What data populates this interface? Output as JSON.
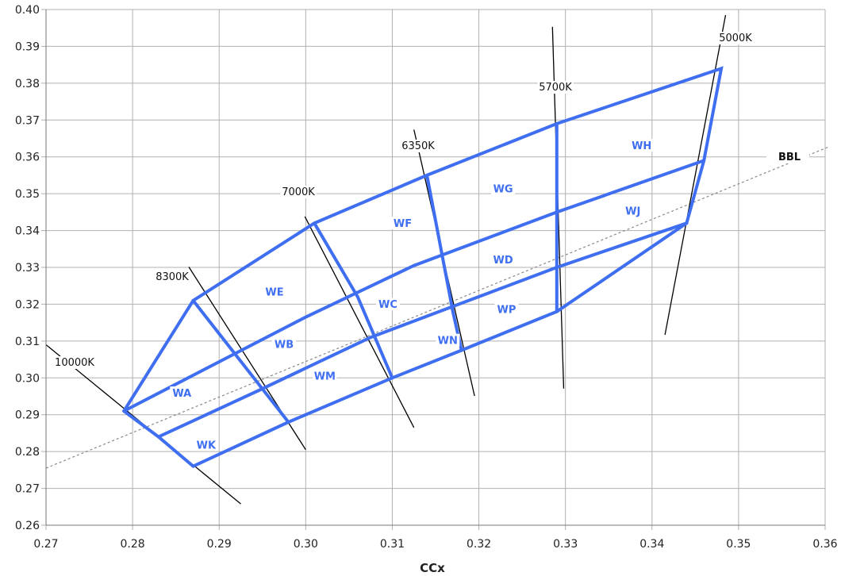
{
  "chart_data": {
    "type": "scatter",
    "xlabel": "CCx",
    "ylabel": "",
    "xlim": [
      0.27,
      0.36
    ],
    "ylim": [
      0.26,
      0.4
    ],
    "x_ticks": [
      "0.27",
      "0.28",
      "0.29",
      "0.30",
      "0.31",
      "0.32",
      "0.33",
      "0.34",
      "0.35",
      "0.36"
    ],
    "y_ticks": [
      "0.26",
      "0.27",
      "0.28",
      "0.29",
      "0.30",
      "0.31",
      "0.32",
      "0.33",
      "0.34",
      "0.35",
      "0.36",
      "0.37",
      "0.38",
      "0.39",
      "0.40"
    ],
    "grid": true,
    "colors": {
      "bins": "#3f6ff0",
      "cct_lines": "#000000",
      "bbl": "#888888",
      "grid": "#b0b0b0"
    },
    "bbl": {
      "label": "BBL",
      "points": [
        [
          0.27,
          0.2755
        ],
        [
          0.3605,
          0.3628
        ]
      ]
    },
    "cct_lines": [
      {
        "label": "10000K",
        "points": [
          [
            0.27,
            0.309
          ],
          [
            0.2925,
            0.2658
          ]
        ]
      },
      {
        "label": "8300K",
        "points": [
          [
            0.2865,
            0.3301
          ],
          [
            0.3,
            0.2805
          ]
        ]
      },
      {
        "label": "7000K",
        "points": [
          [
            0.2999,
            0.3438
          ],
          [
            0.3125,
            0.2865
          ]
        ]
      },
      {
        "label": "6350K",
        "points": [
          [
            0.3125,
            0.3674
          ],
          [
            0.3195,
            0.2951
          ]
        ]
      },
      {
        "label": "5700K",
        "points": [
          [
            0.3285,
            0.3953
          ],
          [
            0.3298,
            0.2971
          ]
        ]
      },
      {
        "label": "5000K",
        "points": [
          [
            0.3485,
            0.3985
          ],
          [
            0.3415,
            0.3117
          ]
        ]
      }
    ],
    "bin_outlines": [
      {
        "points": [
          [
            0.279,
            0.291
          ],
          [
            0.287,
            0.321
          ],
          [
            0.301,
            0.342
          ],
          [
            0.314,
            0.355
          ],
          [
            0.329,
            0.369
          ],
          [
            0.348,
            0.384
          ],
          [
            0.346,
            0.359
          ],
          [
            0.344,
            0.342
          ],
          [
            0.329,
            0.318
          ],
          [
            0.318,
            0.3075
          ],
          [
            0.31,
            0.3
          ],
          [
            0.298,
            0.288
          ],
          [
            0.287,
            0.276
          ],
          [
            0.283,
            0.284
          ],
          [
            0.279,
            0.291
          ]
        ]
      },
      {
        "points": [
          [
            0.279,
            0.291
          ],
          [
            0.3,
            0.3165
          ],
          [
            0.3125,
            0.3305
          ],
          [
            0.329,
            0.345
          ],
          [
            0.346,
            0.359
          ]
        ]
      },
      {
        "points": [
          [
            0.283,
            0.284
          ],
          [
            0.2945,
            0.2965
          ],
          [
            0.3075,
            0.311
          ],
          [
            0.329,
            0.33
          ],
          [
            0.344,
            0.342
          ]
        ]
      },
      {
        "points": [
          [
            0.287,
            0.321
          ],
          [
            0.298,
            0.288
          ]
        ]
      },
      {
        "points": [
          [
            0.301,
            0.342
          ],
          [
            0.306,
            0.322
          ],
          [
            0.31,
            0.3
          ]
        ]
      },
      {
        "points": [
          [
            0.314,
            0.355
          ],
          [
            0.317,
            0.318
          ],
          [
            0.318,
            0.3075
          ]
        ]
      },
      {
        "points": [
          [
            0.329,
            0.369
          ],
          [
            0.329,
            0.318
          ]
        ]
      }
    ],
    "bin_labels": [
      {
        "label": "WA",
        "x": 0.2857,
        "y": 0.2953
      },
      {
        "label": "WB",
        "x": 0.2975,
        "y": 0.3086
      },
      {
        "label": "WC",
        "x": 0.3095,
        "y": 0.3194
      },
      {
        "label": "WD",
        "x": 0.3228,
        "y": 0.3315
      },
      {
        "label": "WE",
        "x": 0.2964,
        "y": 0.3228
      },
      {
        "label": "WF",
        "x": 0.3112,
        "y": 0.3414
      },
      {
        "label": "WG",
        "x": 0.3228,
        "y": 0.3508
      },
      {
        "label": "WH",
        "x": 0.3388,
        "y": 0.3625
      },
      {
        "label": "WJ",
        "x": 0.3378,
        "y": 0.3448
      },
      {
        "label": "WK",
        "x": 0.2885,
        "y": 0.2812
      },
      {
        "label": "WM",
        "x": 0.3022,
        "y": 0.3
      },
      {
        "label": "WN",
        "x": 0.3164,
        "y": 0.3096
      },
      {
        "label": "WP",
        "x": 0.3232,
        "y": 0.3181
      }
    ]
  }
}
